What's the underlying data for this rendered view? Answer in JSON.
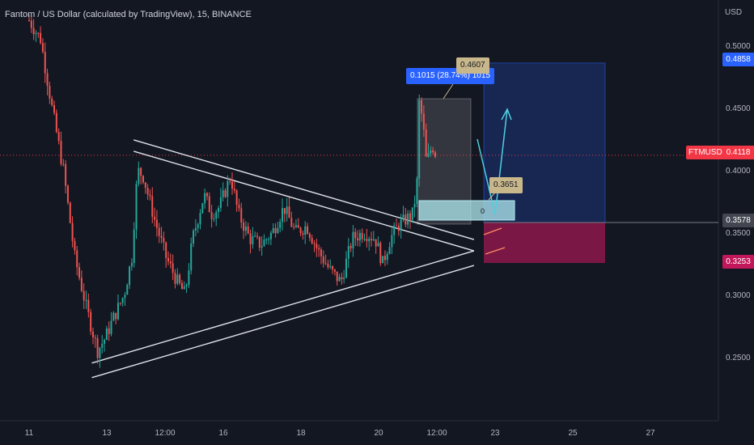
{
  "header": {
    "title": "Fantom / US Dollar (calculated by TradingView), 15, BINANCE"
  },
  "price_axis": {
    "currency_label": "USD",
    "tags": {
      "target": {
        "value": "0.4858",
        "color": "#2962ff"
      },
      "current": {
        "value": "0.4118",
        "color": "#f23645",
        "symbol": "FTMUSD"
      },
      "entry": {
        "value": "0.3578",
        "color": "#434651"
      },
      "stop": {
        "value": "0.3253",
        "color": "#c2185b"
      }
    }
  },
  "annotations": {
    "measure_label": "0.1015 (28.74%) 1015",
    "peak_price": "0.4607",
    "entry_price": "0.3651",
    "position_zero": "0"
  },
  "chart_data": {
    "type": "candlestick",
    "title": "Fantom / US Dollar (calculated by TradingView), 15, BINANCE",
    "ylabel": "USD",
    "y_ticks": [
      0.25,
      0.3,
      0.35,
      0.4,
      0.45,
      0.5
    ],
    "y_tick_labels": [
      "0.2500",
      "0.3000",
      "0.3500",
      "0.4000",
      "0.4500",
      "0.5000"
    ],
    "ylim": [
      0.21,
      0.525
    ],
    "x_tick_labels": [
      "11",
      "13",
      "12:00",
      "16",
      "18",
      "20",
      "12:00",
      "23",
      "25",
      "27"
    ],
    "grid": false,
    "price_path": [
      {
        "t": 0.0,
        "p": 0.52
      },
      {
        "t": 0.3,
        "p": 0.505
      },
      {
        "t": 0.6,
        "p": 0.45
      },
      {
        "t": 0.9,
        "p": 0.4
      },
      {
        "t": 1.2,
        "p": 0.33
      },
      {
        "t": 1.5,
        "p": 0.29
      },
      {
        "t": 1.8,
        "p": 0.255
      },
      {
        "t": 2.0,
        "p": 0.265
      },
      {
        "t": 2.2,
        "p": 0.28
      },
      {
        "t": 2.5,
        "p": 0.3
      },
      {
        "t": 2.7,
        "p": 0.33
      },
      {
        "t": 2.85,
        "p": 0.4
      },
      {
        "t": 3.0,
        "p": 0.395
      },
      {
        "t": 3.3,
        "p": 0.36
      },
      {
        "t": 3.6,
        "p": 0.33
      },
      {
        "t": 3.9,
        "p": 0.31
      },
      {
        "t": 4.1,
        "p": 0.3
      },
      {
        "t": 4.3,
        "p": 0.345
      },
      {
        "t": 4.6,
        "p": 0.38
      },
      {
        "t": 4.8,
        "p": 0.365
      },
      {
        "t": 5.0,
        "p": 0.37
      },
      {
        "t": 5.3,
        "p": 0.395
      },
      {
        "t": 5.5,
        "p": 0.365
      },
      {
        "t": 5.8,
        "p": 0.345
      },
      {
        "t": 6.1,
        "p": 0.34
      },
      {
        "t": 6.4,
        "p": 0.35
      },
      {
        "t": 6.7,
        "p": 0.37
      },
      {
        "t": 7.0,
        "p": 0.35
      },
      {
        "t": 7.3,
        "p": 0.355
      },
      {
        "t": 7.6,
        "p": 0.335
      },
      {
        "t": 7.9,
        "p": 0.32
      },
      {
        "t": 8.2,
        "p": 0.31
      },
      {
        "t": 8.5,
        "p": 0.345
      },
      {
        "t": 8.8,
        "p": 0.35
      },
      {
        "t": 9.1,
        "p": 0.345
      },
      {
        "t": 9.3,
        "p": 0.325
      },
      {
        "t": 9.5,
        "p": 0.345
      },
      {
        "t": 9.7,
        "p": 0.355
      },
      {
        "t": 9.9,
        "p": 0.36
      },
      {
        "t": 10.1,
        "p": 0.365
      },
      {
        "t": 10.2,
        "p": 0.39
      },
      {
        "t": 10.25,
        "p": 0.455
      },
      {
        "t": 10.35,
        "p": 0.44
      },
      {
        "t": 10.45,
        "p": 0.405
      },
      {
        "t": 10.6,
        "p": 0.42
      },
      {
        "t": 10.7,
        "p": 0.412
      }
    ],
    "trendlines": {
      "descending": [
        {
          "t": 2.75,
          "p": 0.415
        },
        {
          "t": 11.7,
          "p": 0.335
        }
      ],
      "ascending": [
        {
          "t": 1.65,
          "p": 0.245
        },
        {
          "t": 11.7,
          "p": 0.335
        }
      ]
    },
    "position": {
      "entry": 0.3578,
      "target": 0.4858,
      "stop": 0.3253,
      "current": 0.4118
    }
  }
}
